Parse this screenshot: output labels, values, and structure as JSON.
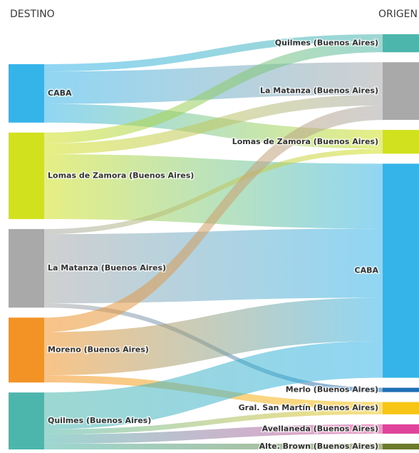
{
  "chart_data": {
    "type": "sankey",
    "left_header": "DESTINO",
    "right_header": "ORIGEN",
    "left_nodes": [
      {
        "name": "CABA",
        "color": "#35b4ea"
      },
      {
        "name": "Lomas de Zamora (Buenos Aires)",
        "color": "#d2e11e"
      },
      {
        "name": "La Matanza (Buenos Aires)",
        "color": "#a9a9a9"
      },
      {
        "name": "Moreno (Buenos Aires)",
        "color": "#f39325"
      },
      {
        "name": "Quilmes (Buenos Aires)",
        "color": "#4db6ac"
      }
    ],
    "right_nodes": [
      {
        "name": "Quilmes (Buenos Aires)",
        "color": "#4db6ac"
      },
      {
        "name": "La Matanza (Buenos Aires)",
        "color": "#a9a9a9"
      },
      {
        "name": "Lomas de Zamora (Buenos Aires)",
        "color": "#d2e11e"
      },
      {
        "name": "CABA",
        "color": "#35b4ea"
      },
      {
        "name": "Merlo (Buenos Aires)",
        "color": "#1f6fb4"
      },
      {
        "name": "Gral. San Martín (Buenos Aires)",
        "color": "#f7c515"
      },
      {
        "name": "Avellaneda (Buenos Aires)",
        "color": "#e0449a"
      },
      {
        "name": "Alte. Brown (Buenos Aires)",
        "color": "#6b7a2a"
      }
    ],
    "links": [
      {
        "destino": 0,
        "origen": 0,
        "value": 10
      },
      {
        "destino": 0,
        "origen": 1,
        "value": 45
      },
      {
        "destino": 0,
        "origen": 2,
        "value": 26
      },
      {
        "destino": 1,
        "origen": 0,
        "value": 15
      },
      {
        "destino": 1,
        "origen": 1,
        "value": 15
      },
      {
        "destino": 1,
        "origen": 3,
        "value": 90
      },
      {
        "destino": 2,
        "origen": 2,
        "value": 7
      },
      {
        "destino": 2,
        "origen": 3,
        "value": 96
      },
      {
        "destino": 2,
        "origen": 4,
        "value": 6
      },
      {
        "destino": 3,
        "origen": 1,
        "value": 20
      },
      {
        "destino": 3,
        "origen": 3,
        "value": 60
      },
      {
        "destino": 3,
        "origen": 5,
        "value": 10
      },
      {
        "destino": 4,
        "origen": 3,
        "value": 51
      },
      {
        "destino": 4,
        "origen": 5,
        "value": 7
      },
      {
        "destino": 4,
        "origen": 6,
        "value": 13
      },
      {
        "destino": 4,
        "origen": 7,
        "value": 8
      }
    ]
  }
}
